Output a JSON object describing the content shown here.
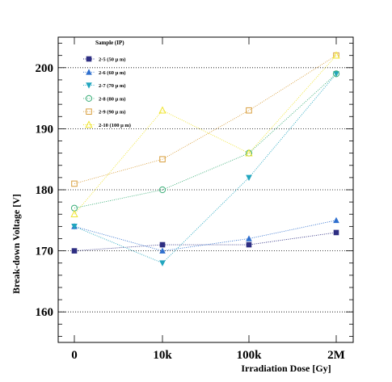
{
  "chart_data": {
    "type": "scatter",
    "xlabel": "Irradiation Dose [Gy]",
    "ylabel": "Break-down Voltage [V]",
    "categories": [
      "0",
      "10k",
      "100k",
      "2M"
    ],
    "yticks": [
      160,
      170,
      180,
      190,
      200
    ],
    "ylim": [
      155,
      205
    ],
    "grid_y": true,
    "legend_title": "Sample (IP)",
    "legend_position": "top-left",
    "series": [
      {
        "name": "2-5 (50 μ m)",
        "color": "#2e2e82",
        "marker": "square",
        "values": [
          170,
          171,
          171,
          173
        ]
      },
      {
        "name": "2-6 (60 μ m)",
        "color": "#2f6fce",
        "marker": "triangle-up",
        "values": [
          174,
          170,
          172,
          175
        ]
      },
      {
        "name": "2-7 (70 μ m)",
        "color": "#22a6bf",
        "marker": "triangle-down",
        "values": [
          174,
          168,
          182,
          199
        ]
      },
      {
        "name": "2-8 (80 μ m)",
        "color": "#3bae78",
        "marker": "circle-open",
        "values": [
          177,
          180,
          186,
          199
        ]
      },
      {
        "name": "2-9 (90 μ m)",
        "color": "#d9a040",
        "marker": "square-open",
        "values": [
          181,
          185,
          193,
          202
        ]
      },
      {
        "name": "2-10 (100 μ m)",
        "color": "#f0e530",
        "marker": "triangle-up-open",
        "values": [
          176,
          193,
          186,
          202
        ]
      }
    ]
  }
}
